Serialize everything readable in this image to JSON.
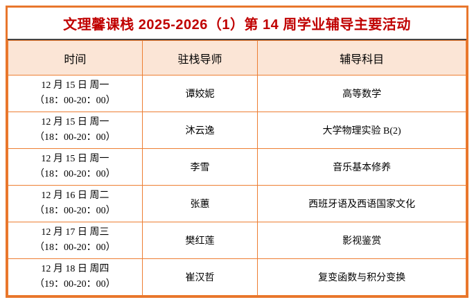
{
  "title": "文理馨课栈 2025-2026（1）第 14 周学业辅导主要活动",
  "colors": {
    "outer_border": "#e8762c",
    "grid_border": "#ed7d31",
    "header_bg": "#fbe5d6",
    "title_text": "#c00000",
    "title_divider": "#444444"
  },
  "table": {
    "headers": [
      "时间",
      "驻栈导师",
      "辅导科目"
    ],
    "rows": [
      {
        "date": "12 月 15 日 周一",
        "time": "（18：00-20：00）",
        "tutor": "谭姣妮",
        "subject": "高等数学"
      },
      {
        "date": "12 月 15 日 周一",
        "time": "（18：00-20：00）",
        "tutor": "沐云逸",
        "subject": "大学物理实验 B(2)"
      },
      {
        "date": "12 月 15 日 周一",
        "time": "（18：00-20：00）",
        "tutor": "李雪",
        "subject": "音乐基本修养"
      },
      {
        "date": "12 月 16 日 周二",
        "time": "（18：00-20：00）",
        "tutor": "张蕙",
        "subject": "西班牙语及西语国家文化"
      },
      {
        "date": "12 月 17 日 周三",
        "time": "（18：00-20：00）",
        "tutor": "樊红莲",
        "subject": "影视鉴赏"
      },
      {
        "date": "12 月 18 日 周四",
        "time": "（19：00-20：00）",
        "tutor": "崔汉哲",
        "subject": "复变函数与积分变换"
      }
    ]
  }
}
